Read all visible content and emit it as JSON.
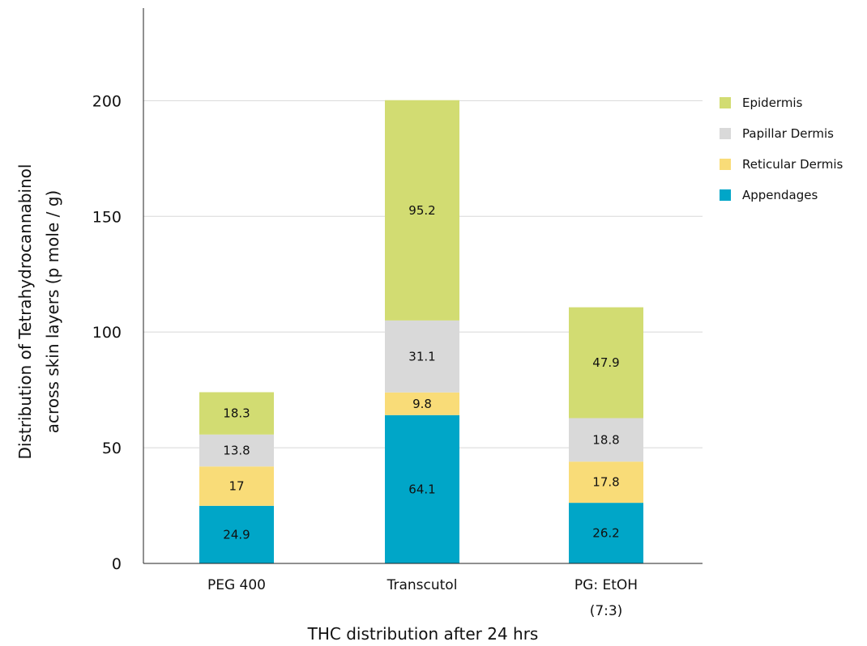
{
  "chart_data": {
    "type": "bar",
    "stacked": true,
    "categories": [
      "PEG 400",
      "Transcutol",
      "PG: EtOH (7:3)"
    ],
    "category_lines": [
      [
        "PEG 400"
      ],
      [
        "Transcutol"
      ],
      [
        "PG: EtOH",
        "(7:3)"
      ]
    ],
    "series": [
      {
        "name": "Appendages",
        "values": [
          24.9,
          64.1,
          26.2
        ],
        "color": "#00a6c8",
        "labels": [
          "24.9",
          "64.1",
          "26.2"
        ]
      },
      {
        "name": "Reticular Dermis",
        "values": [
          17,
          9.8,
          17.8
        ],
        "color": "#f9dc78",
        "labels": [
          "17",
          "9.8",
          "17.8"
        ]
      },
      {
        "name": "Papillar Dermis",
        "values": [
          13.8,
          31.1,
          18.8
        ],
        "color": "#d9d9d9",
        "labels": [
          "13.8",
          "31.1",
          "18.8"
        ]
      },
      {
        "name": "Epidermis",
        "values": [
          18.3,
          95.2,
          47.9
        ],
        "color": "#d2dc72",
        "labels": [
          "18.3",
          "95.2",
          "47.9"
        ]
      }
    ],
    "legend_order": [
      "Epidermis",
      "Papillar Dermis",
      "Reticular Dermis",
      "Appendages"
    ],
    "legend_position": "right",
    "ylim": [
      0,
      240
    ],
    "yticks": [
      0,
      50,
      100,
      150,
      200
    ],
    "ytick_labels": [
      "0",
      "50",
      "100",
      "150",
      "200"
    ],
    "grid": true,
    "xlabel": "THC distribution after 24 hrs",
    "ylabel_lines": [
      "Distribution of Tetrahydrocannabinol",
      "across skin layers (p mole / g)"
    ]
  }
}
